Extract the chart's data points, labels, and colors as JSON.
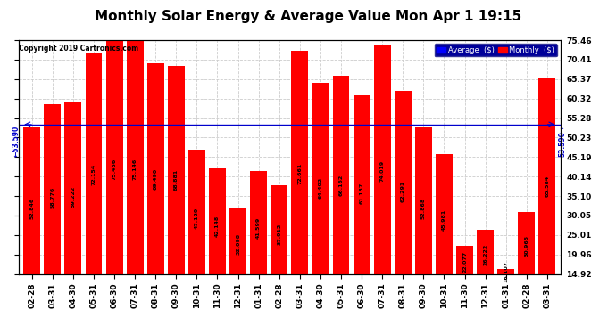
{
  "title": "Monthly Solar Energy & Average Value Mon Apr 1 19:15",
  "copyright": "Copyright 2019 Cartronics.com",
  "categories": [
    "02-28",
    "03-31",
    "04-30",
    "05-31",
    "06-30",
    "07-31",
    "08-31",
    "09-30",
    "10-31",
    "11-30",
    "12-31",
    "01-31",
    "02-28",
    "03-31",
    "04-30",
    "05-31",
    "06-30",
    "07-31",
    "08-31",
    "09-30",
    "10-31",
    "11-30",
    "12-31",
    "01-31",
    "02-28",
    "03-31"
  ],
  "values": [
    52.846,
    58.776,
    59.222,
    72.154,
    75.456,
    75.146,
    69.49,
    68.881,
    47.129,
    42.148,
    32.098,
    41.599,
    37.912,
    72.661,
    64.402,
    66.162,
    61.137,
    74.019,
    62.291,
    52.868,
    45.981,
    22.077,
    26.222,
    16.107,
    30.965,
    65.584
  ],
  "average": 53.59,
  "bar_color": "#FF0000",
  "average_line_color": "#0000CC",
  "background_color": "#FFFFFF",
  "plot_bg_color": "#FFFFFF",
  "grid_color": "#CCCCCC",
  "ymin": 14.92,
  "ymax": 75.46,
  "yticks": [
    14.92,
    19.96,
    25.01,
    30.05,
    35.1,
    40.14,
    45.19,
    50.23,
    55.28,
    60.32,
    65.37,
    70.41,
    75.46
  ],
  "title_fontsize": 11,
  "tick_fontsize": 6.5,
  "bar_label_fontsize": 4.5,
  "avg_label_fontsize": 5.5,
  "legend_facecolor": "#000099",
  "legend_avg_color": "#0000FF",
  "legend_monthly_color": "#FF0000"
}
